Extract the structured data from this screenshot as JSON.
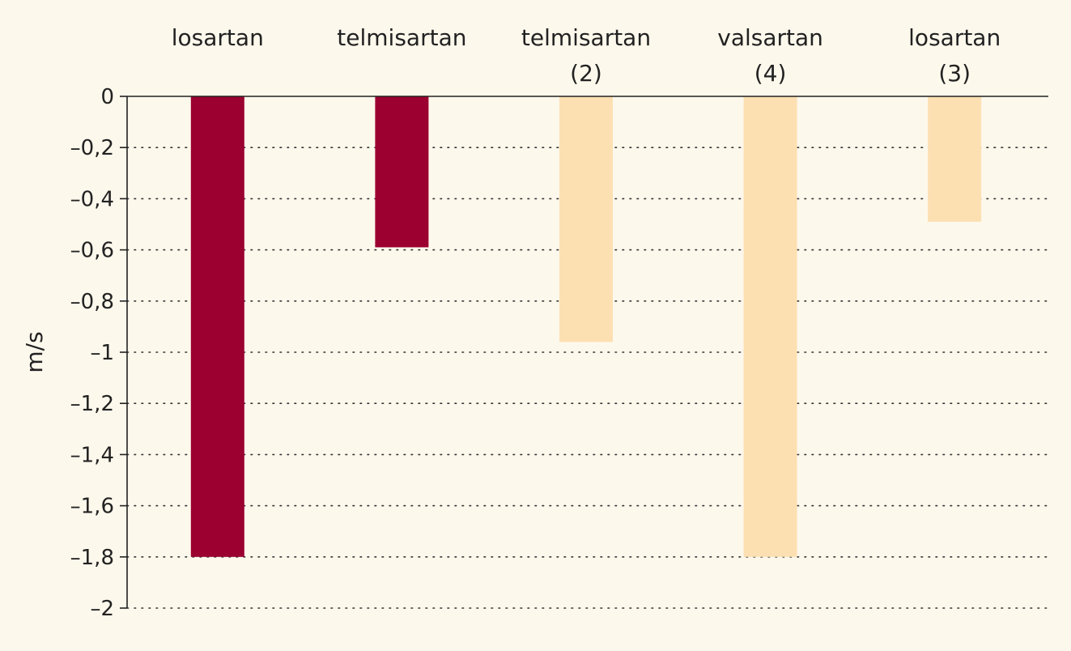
{
  "chart_data": {
    "type": "bar",
    "categories": [
      [
        "losartan"
      ],
      [
        "telmisartan"
      ],
      [
        "telmisartan",
        "(2)"
      ],
      [
        "valsartan",
        "(4)"
      ],
      [
        "losartan",
        "(3)"
      ]
    ],
    "values": [
      -1.8,
      -0.59,
      -0.96,
      -1.8,
      -0.49
    ],
    "bar_colors": [
      "#9b0030",
      "#9b0030",
      "#fde0b2",
      "#fde0b2",
      "#fde0b2"
    ],
    "ylabel": "m/s",
    "ylim": [
      -2,
      0
    ],
    "yticks": [
      0,
      -0.2,
      -0.4,
      -0.6,
      -0.8,
      -1,
      -1.2,
      -1.4,
      -1.6,
      -1.8,
      -2
    ],
    "ytick_labels": [
      "0",
      "–0,2",
      "–0,4",
      "–0,6",
      "–0,8",
      "–1",
      "–1,2",
      "–1,4",
      "–1,6",
      "–1,8",
      "–2"
    ],
    "grid": true,
    "grid_style": "dotted",
    "category_axis_position": "top",
    "background": "#fdf8ec"
  }
}
